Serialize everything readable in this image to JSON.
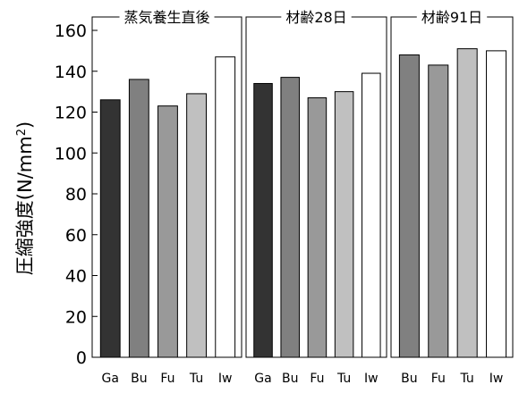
{
  "chart_data": {
    "type": "bar",
    "ylabel": "圧縮強度(N/mm²)",
    "ylabel_main": "圧縮強度(N/mm",
    "ylabel_sup": "2",
    "ylabel_close": ")",
    "ylim": [
      0,
      160
    ],
    "yticks": [
      0,
      20,
      40,
      60,
      80,
      100,
      120,
      140,
      160
    ],
    "grid": false,
    "panels": [
      {
        "title": "蒸気養生直後",
        "categories": [
          "Ga",
          "Bu",
          "Fu",
          "Tu",
          "Iw"
        ],
        "values": [
          126,
          136,
          123,
          129,
          147
        ],
        "colors": [
          "#333333",
          "#808080",
          "#999999",
          "#c0c0c0",
          "#ffffff"
        ]
      },
      {
        "title": "材齢28日",
        "categories": [
          "Ga",
          "Bu",
          "Fu",
          "Tu",
          "Iw"
        ],
        "values": [
          134,
          137,
          127,
          130,
          139
        ],
        "colors": [
          "#333333",
          "#808080",
          "#999999",
          "#c0c0c0",
          "#ffffff"
        ]
      },
      {
        "title": "材齢91日",
        "categories": [
          "Bu",
          "Fu",
          "Tu",
          "Iw"
        ],
        "values": [
          148,
          143,
          151,
          150
        ],
        "colors": [
          "#808080",
          "#999999",
          "#c0c0c0",
          "#ffffff"
        ]
      }
    ]
  }
}
